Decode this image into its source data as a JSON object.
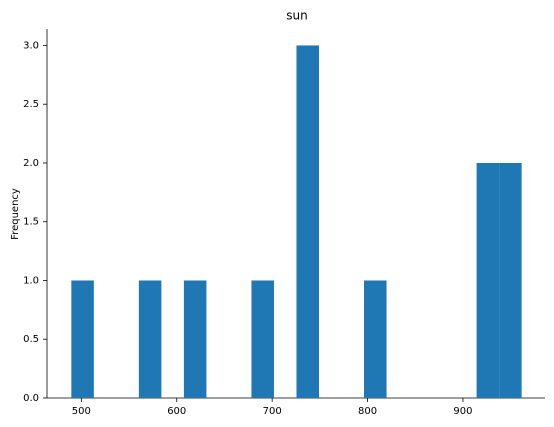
{
  "chart_data": {
    "type": "histogram",
    "title": "sun",
    "y_label": "Frequency",
    "bins": [
      489.5,
      513.1,
      536.7,
      560.3,
      583.9,
      607.5,
      631.1,
      654.7,
      678.3,
      701.9,
      725.5,
      749.1,
      772.7,
      796.3,
      819.9,
      843.5,
      867.1,
      890.7,
      914.3,
      937.9,
      961.5
    ],
    "counts": [
      1,
      0,
      0,
      1,
      0,
      1,
      0,
      0,
      1,
      0,
      3,
      0,
      0,
      1,
      0,
      0,
      0,
      0,
      2,
      2
    ],
    "color": "#1f77b4",
    "xlim": [
      464,
      986
    ],
    "xticks": [
      500,
      600,
      700,
      800,
      900
    ],
    "ylim": [
      0,
      3.14
    ],
    "yticks": [
      {
        "value": 0,
        "label": "0.0"
      },
      {
        "value": 0.5,
        "label": "0.5"
      },
      {
        "value": 1,
        "label": "1.0"
      },
      {
        "value": 1.5,
        "label": "1.5"
      },
      {
        "value": 2,
        "label": "2.0"
      },
      {
        "value": 2.5,
        "label": "2.5"
      },
      {
        "value": 3,
        "label": "3.0"
      }
    ],
    "grid": false
  }
}
